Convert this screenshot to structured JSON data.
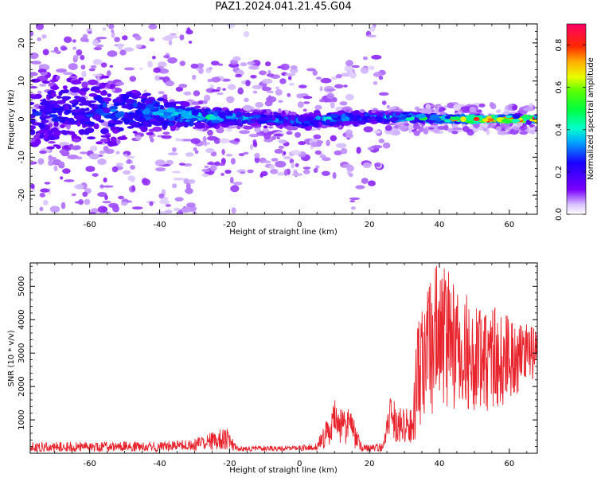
{
  "title": "PAZ1.2024.041.21.45.G04",
  "colors": {
    "snr_line": "#e8232c",
    "axis": "#000000",
    "background": "#ffffff"
  },
  "chart_data": [
    {
      "type": "heatmap",
      "xlabel": "Height of straight line (km)",
      "ylabel": "Frequency (Hz)",
      "xlim": [
        -77,
        68
      ],
      "ylim": [
        -25,
        25
      ],
      "xticks": [
        -60,
        -40,
        -20,
        0,
        20,
        40,
        60
      ],
      "yticks": [
        -20,
        -10,
        0,
        10,
        20
      ],
      "colorbar": {
        "label": "Normalized spectral amplitude",
        "range": [
          0,
          0.9
        ],
        "ticks": [
          0.0,
          0.2,
          0.4,
          0.6,
          0.8
        ],
        "colormap": "gist_rainbow_r"
      },
      "ridge": [
        {
          "x": -75,
          "center": 1,
          "spread": 18,
          "peak": 0.25
        },
        {
          "x": -60,
          "center": 2,
          "spread": 15,
          "peak": 0.28
        },
        {
          "x": -45,
          "center": 2,
          "spread": 10,
          "peak": 0.32
        },
        {
          "x": -35,
          "center": 1,
          "spread": 5,
          "peak": 0.4
        },
        {
          "x": -25,
          "center": 0.5,
          "spread": 3,
          "peak": 0.45
        },
        {
          "x": -10,
          "center": 0,
          "spread": 3,
          "peak": 0.3
        },
        {
          "x": 0,
          "center": -0.5,
          "spread": 2.5,
          "peak": 0.35
        },
        {
          "x": 10,
          "center": 0,
          "spread": 2.5,
          "peak": 0.4
        },
        {
          "x": 20,
          "center": 0.5,
          "spread": 2,
          "peak": 0.35
        },
        {
          "x": 30,
          "center": 0.5,
          "spread": 1.5,
          "peak": 0.45
        },
        {
          "x": 40,
          "center": 0,
          "spread": 1.2,
          "peak": 0.6
        },
        {
          "x": 50,
          "center": 0,
          "spread": 1,
          "peak": 0.85
        },
        {
          "x": 60,
          "center": 0,
          "spread": 1,
          "peak": 0.9
        },
        {
          "x": 67,
          "center": 0,
          "spread": 1,
          "peak": 0.9
        }
      ]
    },
    {
      "type": "line",
      "xlabel": "Height of straight line (km)",
      "ylabel": "SNR (10 * v/v)",
      "xlim": [
        -77,
        68
      ],
      "ylim": [
        0,
        5700
      ],
      "xticks": [
        -60,
        -40,
        -20,
        0,
        20,
        40,
        60
      ],
      "yticks": [
        1000,
        2000,
        3000,
        4000,
        5000
      ],
      "series": [
        {
          "x": [
            -77,
            -60,
            -40,
            -30,
            -25,
            -20,
            -18,
            -10,
            0,
            5,
            8,
            10,
            12,
            14,
            16,
            18,
            20,
            24,
            26,
            28,
            30,
            32,
            34,
            36,
            38,
            40,
            42,
            44,
            46,
            48,
            50,
            52,
            54,
            56,
            58,
            60,
            62,
            64,
            66,
            68
          ],
          "mean": [
            200,
            200,
            200,
            250,
            380,
            400,
            120,
            150,
            150,
            200,
            600,
            1100,
            750,
            800,
            500,
            150,
            150,
            200,
            1100,
            900,
            800,
            900,
            2200,
            3000,
            3300,
            3300,
            3400,
            3100,
            3000,
            3000,
            2800,
            2900,
            2800,
            2900,
            2800,
            2800,
            2900,
            3000,
            3000,
            3000
          ],
          "spread": [
            150,
            150,
            150,
            180,
            300,
            350,
            80,
            80,
            80,
            120,
            500,
            500,
            600,
            600,
            400,
            100,
            100,
            150,
            600,
            600,
            500,
            600,
            1800,
            2500,
            2500,
            2500,
            2300,
            2000,
            2000,
            1800,
            1800,
            1700,
            1600,
            1500,
            1500,
            1300,
            1200,
            900,
            800,
            800
          ]
        }
      ]
    }
  ]
}
